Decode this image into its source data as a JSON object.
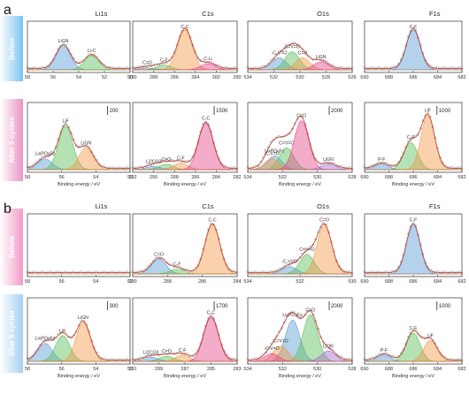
{
  "figure": {
    "rows": [
      {
        "letter": "a",
        "side_labels": [
          "Before",
          "After 5 cycles"
        ],
        "top": [
          {
            "title": "Li1s",
            "xticks": [
              "58",
              "56",
              "54",
              "52",
              "50"
            ],
            "peaks": [
              "LiGN",
              "Li-C"
            ],
            "scale": ""
          },
          {
            "title": "C1s",
            "xticks": [
              "290",
              "288",
              "286",
              "284",
              "282",
              "280"
            ],
            "peaks": [
              "C=O",
              "C-F",
              "C-C",
              "C-Li"
            ],
            "scale": ""
          },
          {
            "title": "O1s",
            "xticks": [
              "534",
              "532",
              "530",
              "528",
              "526"
            ],
            "peaks": [
              "-C-V=O",
              "C=V=O",
              "C=O",
              "LiGN"
            ],
            "scale": ""
          },
          {
            "title": "F1s",
            "xticks": [
              "690",
              "688",
              "686",
              "684",
              "682"
            ],
            "peaks": [
              "C-F"
            ],
            "scale": ""
          }
        ],
        "bottom": [
          {
            "xticks": [
              "58",
              "56",
              "54",
              "52"
            ],
            "peaks": [
              "LixPOyFz",
              "LiF",
              "LiGN"
            ],
            "scale": "200",
            "xlabel": "Binding energy / eV"
          },
          {
            "xticks": [
              "292",
              "290",
              "288",
              "286",
              "284",
              "282"
            ],
            "peaks": [
              "Li2CO3",
              "C=O",
              "C-F",
              "C-C"
            ],
            "scale": "1500",
            "xlabel": "Binding energy / eV"
          },
          {
            "xticks": [
              "534",
              "532",
              "530",
              "528"
            ],
            "peaks": [
              "LixPOyFz",
              "C=V=O",
              "-C-V=O",
              "C=O",
              "LiGN"
            ],
            "scale": "2000",
            "xlabel": "Binding energy / eV"
          },
          {
            "xticks": [
              "690",
              "688",
              "686",
              "684",
              "682"
            ],
            "peaks": [
              "P-F",
              "C-F",
              "LiF"
            ],
            "scale": "1000",
            "xlabel": "Binding energy / eV"
          }
        ]
      },
      {
        "letter": "b",
        "side_labels": [
          "Before",
          "After 5 cycles"
        ],
        "top": [
          {
            "title": "Li1s",
            "xticks": [
              "58",
              "56",
              "54",
              "52"
            ],
            "peaks": [],
            "scale": ""
          },
          {
            "title": "C1s",
            "xticks": [
              "290",
              "288",
              "286",
              "284"
            ],
            "peaks": [
              "C=O",
              "C-F",
              "C-C"
            ],
            "scale": ""
          },
          {
            "title": "O1s",
            "xticks": [
              "534",
              "532",
              "530"
            ],
            "peaks": [
              "C=O",
              "C=V=O",
              "-C-V=O"
            ],
            "scale": ""
          },
          {
            "title": "F1s",
            "xticks": [
              "690",
              "688",
              "686",
              "684",
              "682"
            ],
            "peaks": [
              "C-F"
            ],
            "scale": ""
          }
        ],
        "bottom": [
          {
            "xticks": [
              "58",
              "56",
              "54",
              "52"
            ],
            "peaks": [
              "LixPOyFz",
              "LiF",
              "LiGN"
            ],
            "scale": "300",
            "xlabel": "Binding energy / eV"
          },
          {
            "xticks": [
              "291",
              "289",
              "287",
              "285",
              "283"
            ],
            "peaks": [
              "Li2CO3",
              "C=O",
              "C-F",
              "C-C"
            ],
            "scale": "1700",
            "xlabel": "Binding energy / eV"
          },
          {
            "xticks": [
              "534",
              "532",
              "530",
              "528"
            ],
            "peaks": [
              "LixPOyFz",
              "C=O",
              "C=V=O",
              "-C-V=O",
              "LiOR"
            ],
            "scale": "2000",
            "xlabel": "Binding energy / eV"
          },
          {
            "xticks": [
              "690",
              "688",
              "686",
              "684",
              "682"
            ],
            "peaks": [
              "P-F",
              "C-F",
              "LiF"
            ],
            "scale": "1000",
            "xlabel": "Binding energy / eV"
          }
        ]
      }
    ],
    "colors": {
      "blue": "#5b9bd5",
      "green": "#5cbf5a",
      "orange": "#f29a4a",
      "pink": "#e5478a",
      "purple": "#a46bd0",
      "raw": "#8a8a8a",
      "fit": "#c0392b",
      "before_band": "#7cc4ee",
      "after_band": "#e996c2",
      "b_before_band": "#f29bc8",
      "b_after_band": "#a5d0f0"
    }
  },
  "chart_data": {
    "type": "line",
    "title": "",
    "note": "Deconvoluted XPS spectra (qualitative peak shapes); x axis = Binding energy / eV, reversed",
    "panels": [
      {
        "row": "a",
        "state": "Before",
        "element": "Li1s",
        "x_range": [
          58,
          50
        ],
        "peaks": [
          {
            "label": "LiGN",
            "center": 55.2,
            "rel_height": 0.6
          },
          {
            "label": "Li-C",
            "center": 53.0,
            "rel_height": 0.35
          }
        ]
      },
      {
        "row": "a",
        "state": "Before",
        "element": "C1s",
        "x_range": [
          290,
          280
        ],
        "peaks": [
          {
            "label": "C=O",
            "center": 288.6,
            "rel_height": 0.05
          },
          {
            "label": "C-F",
            "center": 287.0,
            "rel_height": 0.12
          },
          {
            "label": "C-C",
            "center": 285.0,
            "rel_height": 1.0
          },
          {
            "label": "C-Li",
            "center": 282.8,
            "rel_height": 0.15
          }
        ]
      },
      {
        "row": "a",
        "state": "Before",
        "element": "O1s",
        "x_range": [
          534,
          526
        ],
        "peaks": [
          {
            "label": "-C-V=O",
            "center": 531.6,
            "rel_height": 0.3
          },
          {
            "label": "C=V=O",
            "center": 530.6,
            "rel_height": 0.45
          },
          {
            "label": "C=O",
            "center": 529.8,
            "rel_height": 0.3
          },
          {
            "label": "LiGN",
            "center": 528.4,
            "rel_height": 0.2
          }
        ]
      },
      {
        "row": "a",
        "state": "Before",
        "element": "F1s",
        "x_range": [
          690,
          682
        ],
        "peaks": [
          {
            "label": "C-F",
            "center": 686.0,
            "rel_height": 1.0
          }
        ]
      },
      {
        "row": "a",
        "state": "After 5 cycles",
        "element": "Li1s",
        "x_range": [
          58,
          51
        ],
        "peaks": [
          {
            "label": "LixPOyFz",
            "center": 56.8,
            "rel_height": 0.2
          },
          {
            "label": "LiF",
            "center": 55.4,
            "rel_height": 0.8
          },
          {
            "label": "LiGN",
            "center": 54.0,
            "rel_height": 0.4
          }
        ]
      },
      {
        "row": "a",
        "state": "After 5 cycles",
        "element": "C1s",
        "x_range": [
          292,
          282
        ],
        "peaks": [
          {
            "label": "Li2CO3",
            "center": 290.0,
            "rel_height": 0.06
          },
          {
            "label": "C=O",
            "center": 288.8,
            "rel_height": 0.1
          },
          {
            "label": "C-F",
            "center": 287.4,
            "rel_height": 0.12
          },
          {
            "label": "C-C",
            "center": 285.0,
            "rel_height": 0.85
          }
        ]
      },
      {
        "row": "a",
        "state": "After 5 cycles",
        "element": "O1s",
        "x_range": [
          534,
          527
        ],
        "peaks": [
          {
            "label": "LixPOyFz",
            "center": 532.2,
            "rel_height": 0.25
          },
          {
            "label": "C=V=O",
            "center": 531.4,
            "rel_height": 0.4
          },
          {
            "label": "-C-V=O",
            "center": 532.4,
            "rel_height": 0.2
          },
          {
            "label": "C=O",
            "center": 530.4,
            "rel_height": 0.9
          },
          {
            "label": "LiGN",
            "center": 528.6,
            "rel_height": 0.1
          }
        ]
      },
      {
        "row": "a",
        "state": "After 5 cycles",
        "element": "F1s",
        "x_range": [
          690,
          682
        ],
        "peaks": [
          {
            "label": "P-F",
            "center": 688.6,
            "rel_height": 0.1
          },
          {
            "label": "C-F",
            "center": 686.2,
            "rel_height": 0.5
          },
          {
            "label": "LiF",
            "center": 684.8,
            "rel_height": 1.0
          }
        ]
      },
      {
        "row": "b",
        "state": "Before",
        "element": "Li1s",
        "x_range": [
          58,
          50
        ],
        "peaks": []
      },
      {
        "row": "b",
        "state": "Before",
        "element": "C1s",
        "x_range": [
          291,
          283
        ],
        "peaks": [
          {
            "label": "C=O",
            "center": 289.0,
            "rel_height": 0.3
          },
          {
            "label": "C-F",
            "center": 287.6,
            "rel_height": 0.1
          },
          {
            "label": "C-C",
            "center": 284.9,
            "rel_height": 1.0
          }
        ]
      },
      {
        "row": "b",
        "state": "Before",
        "element": "O1s",
        "x_range": [
          535,
          529
        ],
        "peaks": [
          {
            "label": "-C-V=O",
            "center": 532.6,
            "rel_height": 0.15
          },
          {
            "label": "C=V=O",
            "center": 531.6,
            "rel_height": 0.4
          },
          {
            "label": "C=O",
            "center": 530.6,
            "rel_height": 1.0
          }
        ]
      },
      {
        "row": "b",
        "state": "Before",
        "element": "F1s",
        "x_range": [
          690,
          682
        ],
        "peaks": [
          {
            "label": "C-F",
            "center": 686.0,
            "rel_height": 1.0
          }
        ]
      },
      {
        "row": "b",
        "state": "After 5 cycles",
        "element": "Li1s",
        "x_range": [
          58,
          51
        ],
        "peaks": [
          {
            "label": "LixPOyFz",
            "center": 56.8,
            "rel_height": 0.35
          },
          {
            "label": "LiF",
            "center": 55.6,
            "rel_height": 0.5
          },
          {
            "label": "LiGN",
            "center": 54.2,
            "rel_height": 0.75
          }
        ]
      },
      {
        "row": "b",
        "state": "After 5 cycles",
        "element": "C1s",
        "x_range": [
          291,
          283
        ],
        "peaks": [
          {
            "label": "Li2CO3",
            "center": 289.6,
            "rel_height": 0.08
          },
          {
            "label": "C=O",
            "center": 288.4,
            "rel_height": 0.1
          },
          {
            "label": "C-F",
            "center": 287.2,
            "rel_height": 0.12
          },
          {
            "label": "C-C",
            "center": 285.0,
            "rel_height": 0.85
          }
        ]
      },
      {
        "row": "b",
        "state": "After 5 cycles",
        "element": "O1s",
        "x_range": [
          535,
          528
        ],
        "peaks": [
          {
            "label": "LixPOyFz",
            "center": 532.0,
            "rel_height": 0.8
          },
          {
            "label": "C=O",
            "center": 530.8,
            "rel_height": 0.9
          },
          {
            "label": "C=V=O",
            "center": 532.8,
            "rel_height": 0.3
          },
          {
            "label": "-C-V=O",
            "center": 533.4,
            "rel_height": 0.15
          },
          {
            "label": "LiOR",
            "center": 529.6,
            "rel_height": 0.2
          }
        ]
      },
      {
        "row": "b",
        "state": "After 5 cycles",
        "element": "F1s",
        "x_range": [
          690,
          682
        ],
        "peaks": [
          {
            "label": "P-F",
            "center": 688.4,
            "rel_height": 0.12
          },
          {
            "label": "C-F",
            "center": 686.0,
            "rel_height": 0.55
          },
          {
            "label": "LiF",
            "center": 684.6,
            "rel_height": 0.4
          }
        ]
      }
    ]
  }
}
